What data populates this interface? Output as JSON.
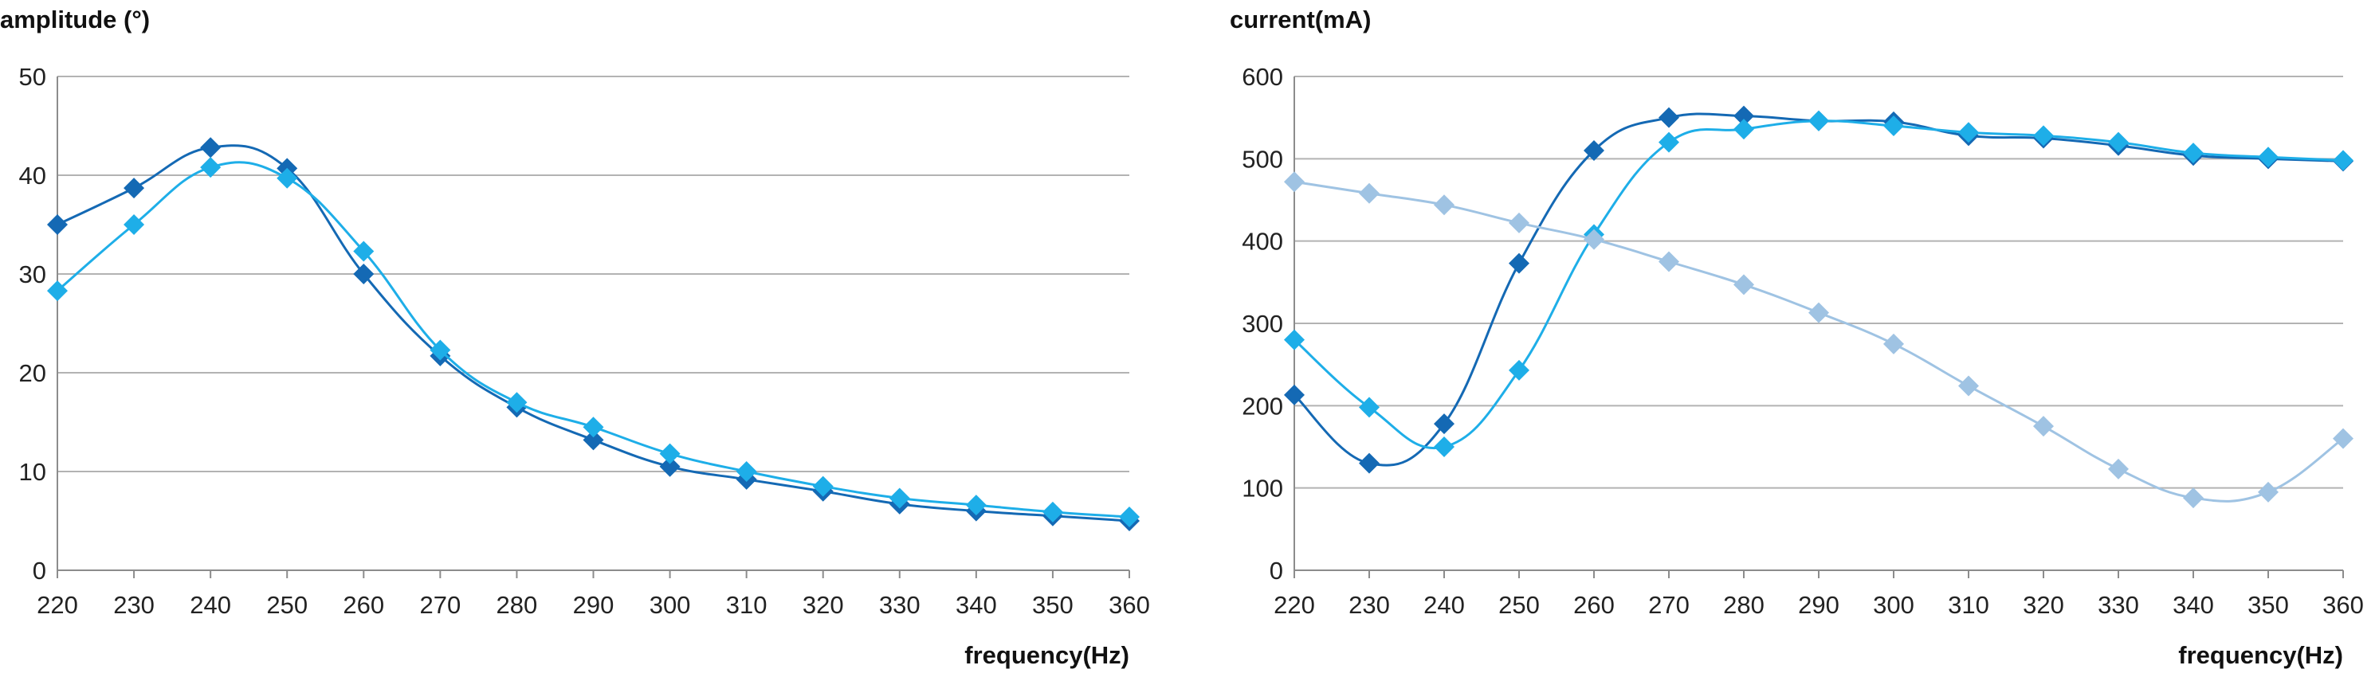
{
  "chart_data": [
    {
      "type": "line",
      "title": "",
      "ylabel": "amplitude (°)",
      "xlabel": "frequency(Hz)",
      "x": [
        220,
        230,
        240,
        250,
        260,
        270,
        280,
        290,
        300,
        310,
        320,
        330,
        340,
        350,
        360
      ],
      "ylim": [
        0,
        50
      ],
      "yticks": [
        0,
        10,
        20,
        30,
        40,
        50
      ],
      "grid": true,
      "legend": "none",
      "series": [
        {
          "color": "#1469b4",
          "values": [
            35,
            38.7,
            42.8,
            40.7,
            30,
            21.7,
            16.5,
            13.2,
            10.5,
            9.2,
            8,
            6.7,
            6,
            5.5,
            5
          ]
        },
        {
          "color": "#1eaee8",
          "values": [
            28.3,
            35,
            40.8,
            39.7,
            32.3,
            22.3,
            17,
            14.5,
            11.8,
            10,
            8.5,
            7.3,
            6.6,
            5.9,
            5.4
          ]
        }
      ]
    },
    {
      "type": "line",
      "title": "",
      "ylabel": "current(mA)",
      "xlabel": "frequency(Hz)",
      "x": [
        220,
        230,
        240,
        250,
        260,
        270,
        280,
        290,
        300,
        310,
        320,
        330,
        340,
        350,
        360
      ],
      "ylim": [
        0,
        600
      ],
      "yticks": [
        0,
        100,
        200,
        300,
        400,
        500,
        600
      ],
      "grid": true,
      "legend": "none",
      "series": [
        {
          "color": "#1469b4",
          "values": [
            213,
            130,
            178,
            373,
            510,
            550,
            552,
            546,
            545,
            528,
            525,
            516,
            504,
            500,
            497
          ]
        },
        {
          "color": "#1eaee8",
          "values": [
            280,
            198,
            150,
            243,
            408,
            520,
            536,
            546,
            540,
            532,
            528,
            520,
            507,
            502,
            498
          ]
        },
        {
          "color": "#9fc3e3",
          "values": [
            472,
            458,
            444,
            422,
            402,
            375,
            347,
            313,
            275,
            224,
            175,
            123,
            88,
            95,
            160
          ]
        }
      ]
    }
  ]
}
